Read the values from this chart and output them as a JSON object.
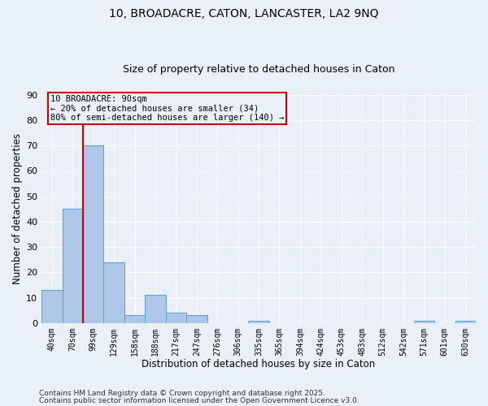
{
  "title": "10, BROADACRE, CATON, LANCASTER, LA2 9NQ",
  "subtitle": "Size of property relative to detached houses in Caton",
  "xlabel": "Distribution of detached houses by size in Caton",
  "ylabel": "Number of detached properties",
  "bar_values": [
    13,
    45,
    70,
    24,
    3,
    11,
    4,
    3,
    0,
    0,
    1,
    0,
    0,
    0,
    0,
    0,
    0,
    0,
    1,
    0,
    1
  ],
  "categories": [
    "40sqm",
    "70sqm",
    "99sqm",
    "129sqm",
    "158sqm",
    "188sqm",
    "217sqm",
    "247sqm",
    "276sqm",
    "306sqm",
    "335sqm",
    "365sqm",
    "394sqm",
    "424sqm",
    "453sqm",
    "483sqm",
    "512sqm",
    "542sqm",
    "571sqm",
    "601sqm",
    "630sqm"
  ],
  "bar_color": "#aec6e8",
  "bar_edge_color": "#5a9fd4",
  "ylim": [
    0,
    90
  ],
  "yticks": [
    0,
    10,
    20,
    30,
    40,
    50,
    60,
    70,
    80,
    90
  ],
  "vline_x_index": 1,
  "vline_color": "#cc0000",
  "annotation_text": "10 BROADACRE: 90sqm\n← 20% of detached houses are smaller (34)\n80% of semi-detached houses are larger (140) →",
  "annotation_box_color": "#cc0000",
  "footer_line1": "Contains HM Land Registry data © Crown copyright and database right 2025.",
  "footer_line2": "Contains public sector information licensed under the Open Government Licence v3.0.",
  "background_color": "#eaf0f8",
  "grid_color": "#ffffff",
  "title_fontsize": 10,
  "subtitle_fontsize": 9
}
